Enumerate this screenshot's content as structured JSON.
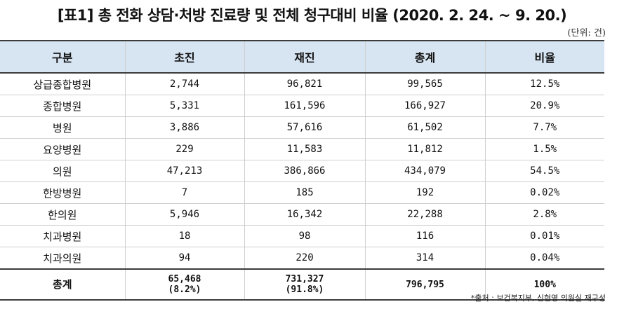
{
  "title": "[표1] 총 전화 상담·처방 진료량 및 전체 청구대비 비율 (2020. 2. 24. ~ 9. 20.)",
  "unit": "(단위: 건)",
  "columns": [
    "구분",
    "초진",
    "재진",
    "총계",
    "비율"
  ],
  "rows": [
    {
      "category": "상급종합병원",
      "first": "2,744",
      "revisit": "96,821",
      "total": "99,565",
      "ratio": "12.5%"
    },
    {
      "category": "종합병원",
      "first": "5,331",
      "revisit": "161,596",
      "total": "166,927",
      "ratio": "20.9%"
    },
    {
      "category": "병원",
      "first": "3,886",
      "revisit": "57,616",
      "total": "61,502",
      "ratio": "7.7%"
    },
    {
      "category": "요양병원",
      "first": "229",
      "revisit": "11,583",
      "total": "11,812",
      "ratio": "1.5%"
    },
    {
      "category": "의원",
      "first": "47,213",
      "revisit": "386,866",
      "total": "434,079",
      "ratio": "54.5%"
    },
    {
      "category": "한방병원",
      "first": "7",
      "revisit": "185",
      "total": "192",
      "ratio": "0.02%"
    },
    {
      "category": "한의원",
      "first": "5,946",
      "revisit": "16,342",
      "total": "22,288",
      "ratio": "2.8%"
    },
    {
      "category": "치과병원",
      "first": "18",
      "revisit": "98",
      "total": "116",
      "ratio": "0.01%"
    },
    {
      "category": "치과의원",
      "first": "94",
      "revisit": "220",
      "total": "314",
      "ratio": "0.04%"
    }
  ],
  "total": {
    "category": "총계",
    "first": "65,468",
    "first_share": "(8.2%)",
    "revisit": "731,327",
    "revisit_share": "(91.8%)",
    "total": "796,795",
    "ratio": "100%"
  },
  "source": "*출처 : 보건복지부, 신현영 의원실 재구성",
  "colors": {
    "header_bg": "#d7e4f1",
    "rule": "#3c3c3c",
    "grid": "#cfcfcf"
  }
}
